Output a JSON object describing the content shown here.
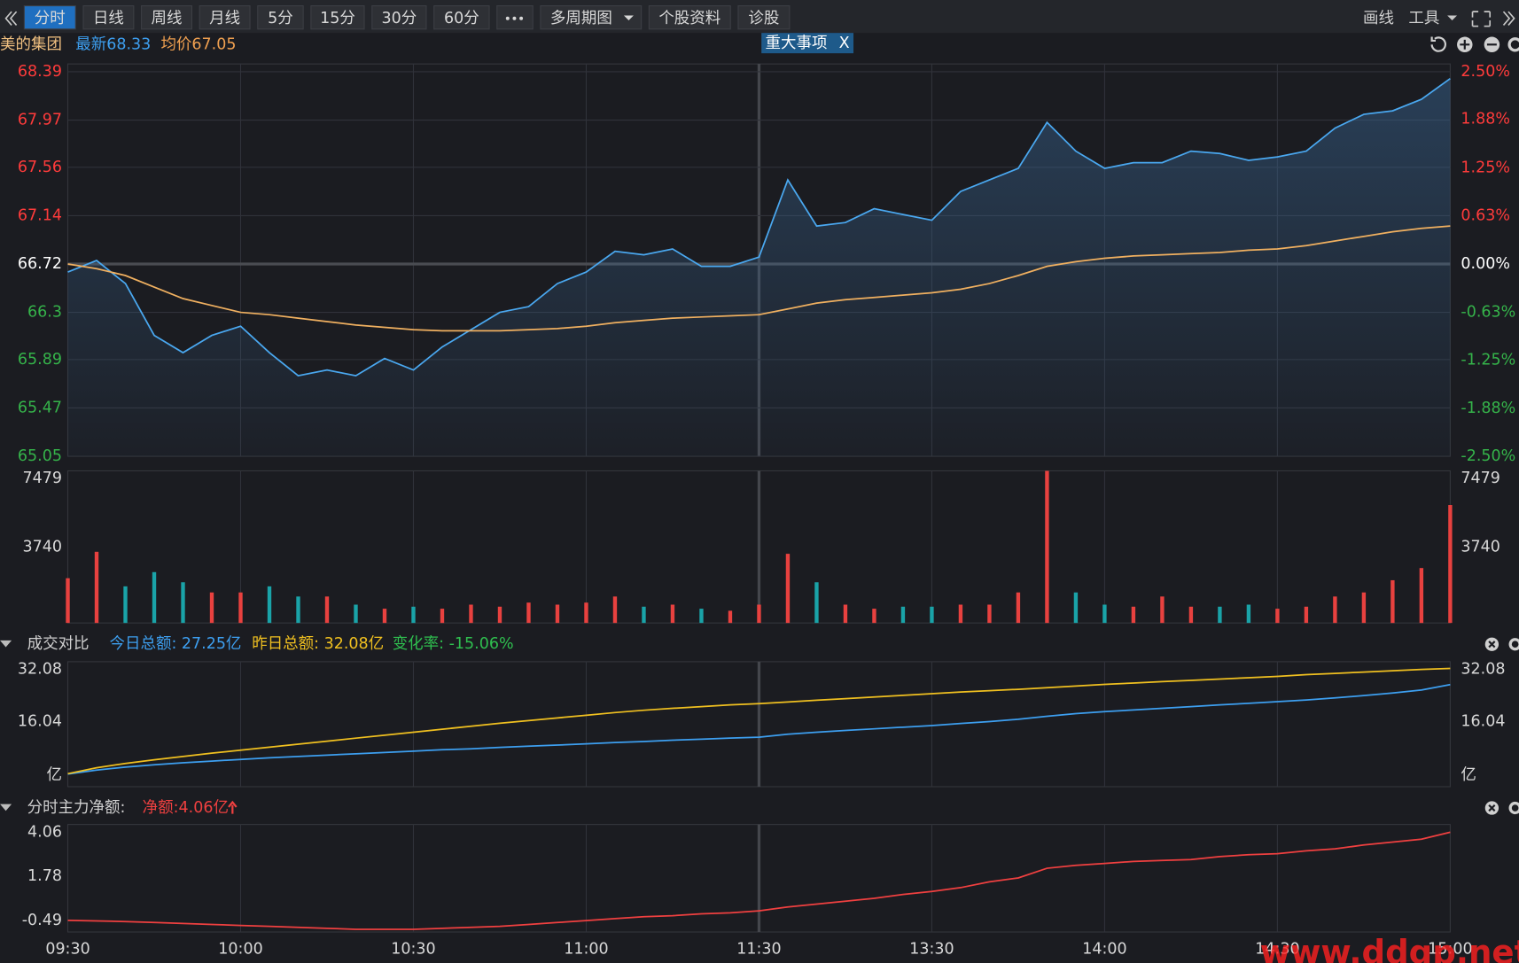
{
  "toolbar": {
    "tabs": [
      "分时",
      "日线",
      "周线",
      "月线",
      "5分",
      "15分",
      "30分",
      "60分",
      "多周期图",
      "个股资料",
      "诊股"
    ],
    "right": [
      "画线",
      "工具"
    ]
  },
  "event_tag": {
    "label": "重大事项",
    "close": "X"
  },
  "watermark": "www.ddgp.net",
  "chart_data": [
    {
      "type": "line",
      "title": "美的集团",
      "annotations": [
        "最新68.33",
        "均价67.05"
      ],
      "annotation_colors": [
        "#3d9ff0",
        "#f0a050"
      ],
      "series": [
        {
          "color": "#4aa8f0",
          "values": [
            66.65,
            66.75,
            66.55,
            66.1,
            65.95,
            66.1,
            66.18,
            65.95,
            65.75,
            65.8,
            65.75,
            65.9,
            65.8,
            66.0,
            66.15,
            66.3,
            66.35,
            66.55,
            66.65,
            66.83,
            66.8,
            66.85,
            66.7,
            66.7,
            66.78,
            67.45,
            67.05,
            67.08,
            67.2,
            67.15,
            67.1,
            67.35,
            67.45,
            67.55,
            67.95,
            67.7,
            67.55,
            67.6,
            67.6,
            67.7,
            67.68,
            67.62,
            67.65,
            67.7,
            67.9,
            68.02,
            68.05,
            68.15,
            68.33
          ]
        },
        {
          "color": "#f0b060",
          "values": [
            66.72,
            66.68,
            66.62,
            66.52,
            66.42,
            66.36,
            66.3,
            66.28,
            66.25,
            66.22,
            66.19,
            66.17,
            66.15,
            66.14,
            66.14,
            66.14,
            66.15,
            66.16,
            66.18,
            66.21,
            66.23,
            66.25,
            66.26,
            66.27,
            66.28,
            66.33,
            66.38,
            66.41,
            66.43,
            66.45,
            66.47,
            66.5,
            66.55,
            66.62,
            66.7,
            66.74,
            66.77,
            66.79,
            66.8,
            66.81,
            66.82,
            66.84,
            66.85,
            66.88,
            66.92,
            66.96,
            67.0,
            67.03,
            67.05
          ]
        }
      ],
      "ylim": [
        65.05,
        68.39
      ],
      "yticks": [
        68.39,
        67.97,
        67.56,
        67.14,
        66.72,
        66.3,
        65.89,
        65.47,
        65.05
      ],
      "y2lim": [
        -2.5,
        2.5
      ],
      "y2ticks": [
        {
          "value": 2.5,
          "label": "2.50%"
        },
        {
          "value": 1.88,
          "label": "1.88%"
        },
        {
          "value": 1.25,
          "label": "1.25%"
        },
        {
          "value": 0.63,
          "label": "0.63%"
        },
        {
          "value": 0,
          "label": "0.00%"
        },
        {
          "value": -0.63,
          "label": "-0.63%"
        },
        {
          "value": -1.25,
          "label": "-1.25%"
        },
        {
          "value": -1.88,
          "label": "-1.88%"
        },
        {
          "value": -2.5,
          "label": "-2.50%"
        }
      ],
      "grid": true
    },
    {
      "type": "bar",
      "colors": {
        "up": "#e8413f",
        "down": "#1aa3a8"
      },
      "values": [
        2200,
        3500,
        1800,
        2500,
        2000,
        1500,
        1500,
        1800,
        1300,
        1300,
        900,
        700,
        800,
        700,
        900,
        800,
        1000,
        900,
        1000,
        1300,
        800,
        900,
        700,
        600,
        900,
        3400,
        2000,
        900,
        700,
        800,
        800,
        900,
        900,
        1500,
        7479,
        1500,
        900,
        800,
        1300,
        800,
        800,
        900,
        700,
        800,
        1300,
        1500,
        2100,
        2700,
        5800
      ],
      "ylim": [
        0,
        7479
      ],
      "yticks": [
        3740,
        7479
      ],
      "y2lim": [
        0,
        7479
      ],
      "y2ticks": [
        3740,
        7479
      ]
    },
    {
      "type": "line",
      "title": "成交对比",
      "annotations": [
        "今日总额: 27.25亿",
        "昨日总额: 32.08亿",
        "变化率: -15.06%"
      ],
      "annotation_colors": [
        "#3d9ff0",
        "#f0c020",
        "#2fbf4f"
      ],
      "series": [
        {
          "color": "#3d9ff0",
          "values": [
            0.3,
            1.5,
            2.4,
            3.1,
            3.7,
            4.2,
            4.7,
            5.2,
            5.6,
            6.0,
            6.4,
            6.8,
            7.2,
            7.6,
            7.9,
            8.3,
            8.7,
            9.0,
            9.4,
            9.8,
            10.1,
            10.5,
            10.8,
            11.1,
            11.4,
            12.3,
            12.9,
            13.4,
            13.9,
            14.4,
            14.9,
            15.5,
            16.1,
            16.8,
            17.7,
            18.5,
            19.1,
            19.6,
            20.1,
            20.6,
            21.1,
            21.6,
            22.1,
            22.6,
            23.2,
            23.9,
            24.7,
            25.6,
            27.25
          ]
        },
        {
          "color": "#f0c020",
          "values": [
            0.4,
            2.2,
            3.5,
            4.6,
            5.6,
            6.6,
            7.5,
            8.4,
            9.3,
            10.2,
            11.1,
            12.0,
            12.9,
            13.8,
            14.7,
            15.6,
            16.4,
            17.2,
            18.0,
            18.8,
            19.5,
            20.1,
            20.6,
            21.1,
            21.5,
            22.0,
            22.5,
            23.0,
            23.5,
            24.0,
            24.5,
            25.0,
            25.4,
            25.8,
            26.3,
            26.8,
            27.3,
            27.7,
            28.1,
            28.5,
            28.9,
            29.3,
            29.7,
            30.2,
            30.6,
            31.0,
            31.4,
            31.8,
            32.08
          ]
        }
      ],
      "ylim": [
        -3.5,
        34.12
      ],
      "yticks": [
        {
          "value": 0,
          "label": "亿"
        },
        16.04,
        32.08
      ],
      "y2lim": [
        -3.5,
        34.12
      ],
      "y2ticks": [
        {
          "value": 0,
          "label": "亿"
        },
        16.04,
        32.08
      ]
    },
    {
      "type": "line",
      "title": "分时主力净额:",
      "annotations": [
        "净额:4.06亿"
      ],
      "annotation_colors": [
        "#f04040"
      ],
      "categories": [
        "09:30",
        null,
        null,
        null,
        null,
        null,
        "10:00",
        null,
        null,
        null,
        null,
        null,
        "10:30",
        null,
        null,
        null,
        null,
        null,
        "11:00",
        null,
        null,
        null,
        null,
        null,
        "11:30",
        null,
        null,
        null,
        null,
        null,
        "13:30",
        null,
        null,
        null,
        null,
        null,
        "14:00",
        null,
        null,
        null,
        null,
        null,
        "14:30",
        null,
        null,
        null,
        null,
        null,
        "15:00"
      ],
      "series": [
        {
          "color": "#f04040",
          "values": [
            -0.49,
            -0.52,
            -0.55,
            -0.6,
            -0.65,
            -0.7,
            -0.75,
            -0.8,
            -0.85,
            -0.9,
            -0.95,
            -0.95,
            -0.95,
            -0.9,
            -0.85,
            -0.8,
            -0.7,
            -0.6,
            -0.5,
            -0.4,
            -0.3,
            -0.25,
            -0.15,
            -0.1,
            0.0,
            0.2,
            0.35,
            0.5,
            0.65,
            0.85,
            1.0,
            1.2,
            1.5,
            1.7,
            2.2,
            2.35,
            2.45,
            2.55,
            2.6,
            2.65,
            2.8,
            2.9,
            2.95,
            3.1,
            3.2,
            3.4,
            3.55,
            3.7,
            4.06
          ]
        }
      ],
      "ylim": [
        -1.09,
        4.46
      ],
      "yticks": [
        4.06,
        1.78,
        -0.49
      ]
    }
  ]
}
